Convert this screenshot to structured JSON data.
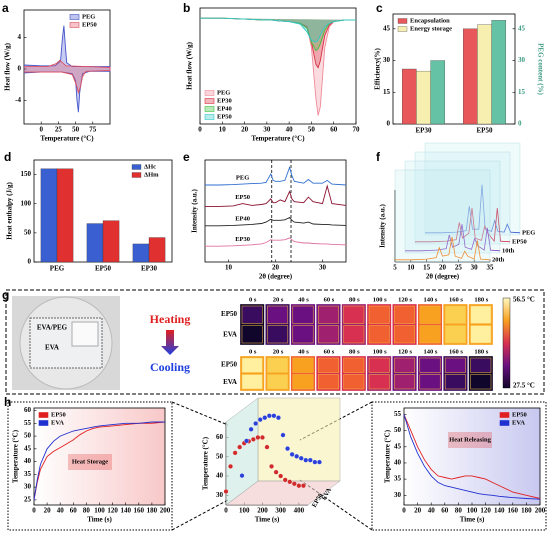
{
  "chart_data": [
    {
      "type": "line",
      "panel": "a",
      "fill": true,
      "legend": "upper right",
      "x_label": "Temperature (°C)",
      "y_label": "Heat flow (W/g)",
      "xlim": [
        -25,
        100
      ],
      "xticks": [
        0,
        25,
        50,
        75
      ],
      "ylim": [
        -7,
        7.5
      ],
      "yticks": [
        -4,
        0,
        4
      ],
      "series": [
        {
          "name": "PEG",
          "color": "#4455cc",
          "x": [
            -25,
            0,
            20,
            28,
            31,
            33,
            35,
            37,
            45,
            75,
            100,
            100,
            70,
            60,
            56,
            54,
            52,
            50,
            45,
            30,
            0,
            -25
          ],
          "values": [
            0.5,
            0.4,
            0.4,
            1,
            4,
            5.5,
            3,
            0.8,
            0.3,
            0.3,
            0.3,
            -0.3,
            -0.3,
            -0.6,
            -3,
            -5.5,
            -4,
            -1.5,
            -0.6,
            -0.4,
            -0.4,
            -0.5
          ]
        },
        {
          "name": "EP50",
          "color": "#e05060",
          "x": [
            -25,
            10,
            22,
            27,
            31,
            36,
            100,
            100,
            65,
            60,
            57,
            54,
            51,
            45,
            30,
            -25
          ],
          "values": [
            0.3,
            0.3,
            0.7,
            1.1,
            0.8,
            0.4,
            0.2,
            -0.2,
            -0.3,
            -1,
            -2.3,
            -3,
            -2,
            -0.7,
            -0.4,
            -0.4
          ]
        }
      ]
    },
    {
      "type": "line",
      "panel": "b",
      "fill": true,
      "legend": "lower left",
      "x_label": "Temperature (°C)",
      "y_label": "Heat flow (W/g)",
      "xlim": [
        0,
        70
      ],
      "xticks": [
        0,
        10,
        20,
        30,
        40,
        50,
        60,
        70
      ],
      "ylim": [
        -6,
        0.8
      ],
      "x": [
        0,
        10,
        20,
        28,
        30,
        32,
        35,
        40,
        45,
        48,
        50,
        52,
        53,
        54,
        56,
        58,
        60,
        65,
        70
      ],
      "series": [
        {
          "name": "PEG",
          "color": "#f08a98",
          "values": [
            0.2,
            0.2,
            0.15,
            0.1,
            0.1,
            0.1,
            0.05,
            0,
            -0.1,
            -0.3,
            -1.5,
            -4.5,
            -5.5,
            -5,
            -1.5,
            -0.3,
            0,
            0.1,
            0.1
          ]
        },
        {
          "name": "EP30",
          "color": "#d83040",
          "values": [
            0.2,
            0.2,
            0.15,
            0.1,
            0.1,
            0.1,
            0.05,
            0,
            -0.1,
            -0.3,
            -1.2,
            -2.5,
            -2.7,
            -2.3,
            -0.8,
            -0.2,
            0,
            0.1,
            0.1
          ]
        },
        {
          "name": "EP40",
          "color": "#3cc03c",
          "values": [
            0.2,
            0.2,
            0.15,
            0.1,
            0.1,
            0.1,
            0.05,
            0,
            -0.1,
            -0.4,
            -1.2,
            -1.7,
            -1.6,
            -1.3,
            -0.5,
            -0.1,
            0,
            0.1,
            0.1
          ]
        },
        {
          "name": "EP50",
          "color": "#30c8c8",
          "values": [
            0.2,
            0.2,
            0.15,
            0.1,
            0.1,
            0.1,
            0.05,
            0,
            -0.15,
            -0.6,
            -1.1,
            -1.2,
            -1.1,
            -0.8,
            -0.3,
            -0.1,
            0,
            0.1,
            0.1
          ]
        }
      ]
    },
    {
      "type": "bar",
      "panel": "c",
      "legend": "upper left",
      "y_label": "Efficiency(%)",
      "y2_label": "PEG content (%)",
      "categories": [
        "EP30",
        "EP50"
      ],
      "ylim": [
        0,
        52
      ],
      "yticks": [
        0,
        15,
        30,
        45
      ],
      "y2lim": [
        0,
        52
      ],
      "y2ticks": [
        0,
        15,
        30,
        45
      ],
      "series": [
        {
          "name": "Encapsulation",
          "color": "#e8585a",
          "values": [
            26,
            45
          ]
        },
        {
          "name": "Energy storage",
          "color": "#f7efb0",
          "values": [
            25,
            47
          ]
        },
        {
          "color": "#66c2a5",
          "axis": "y2",
          "values": [
            30,
            49
          ]
        }
      ]
    },
    {
      "type": "bar",
      "panel": "d",
      "legend": "upper right",
      "y_label": "Heat enthalpy (J/g)",
      "categories": [
        "PEG",
        "EP50",
        "EP30"
      ],
      "ylim": [
        0,
        175
      ],
      "yticks": [
        0,
        50,
        100,
        150
      ],
      "series": [
        {
          "name": "ΔHc",
          "color": "#3a5fd0",
          "values": [
            160,
            66,
            31
          ]
        },
        {
          "name": "ΔHm",
          "color": "#e03030",
          "values": [
            160,
            71,
            42
          ]
        }
      ]
    },
    {
      "type": "line",
      "panel": "e",
      "legend": "inline",
      "x_label": "2θ (degree)",
      "y_label": "Intensity (a.u.)",
      "xlim": [
        5,
        35
      ],
      "xticks": [
        10,
        20,
        30
      ],
      "ylim": [
        0,
        11
      ],
      "vlines": [
        19.2,
        23.3
      ],
      "x": [
        5,
        8,
        11,
        13,
        15,
        17,
        18,
        19,
        19.5,
        20,
        21,
        22,
        23,
        23.5,
        24,
        26,
        27,
        28,
        30,
        31,
        32,
        35
      ],
      "series": [
        {
          "name": "PEG",
          "color": "#2f6fd0",
          "values": [
            8.3,
            8.3,
            8.35,
            8.4,
            8.45,
            8.5,
            8.6,
            9.5,
            8.8,
            8.7,
            8.7,
            8.8,
            10.2,
            9.3,
            8.7,
            8.5,
            8.9,
            8.5,
            8.5,
            8.8,
            8.4,
            8.3
          ]
        },
        {
          "name": "EP50",
          "color": "#8a1030",
          "values": [
            6.0,
            6.0,
            6.05,
            6.3,
            6.1,
            6.2,
            6.3,
            6.8,
            6.4,
            6.4,
            6.7,
            6.5,
            7.6,
            6.8,
            6.5,
            6.4,
            7.0,
            6.5,
            6.3,
            8.2,
            6.3,
            6.1
          ]
        },
        {
          "name": "EP40",
          "color": "#222222",
          "values": [
            3.9,
            3.9,
            3.95,
            4.0,
            4.05,
            4.15,
            4.3,
            4.6,
            4.5,
            4.5,
            4.5,
            4.55,
            4.8,
            4.5,
            4.3,
            4.2,
            4.3,
            4.1,
            4.05,
            4.05,
            4.0,
            3.95
          ]
        },
        {
          "name": "EP30",
          "color": "#e070a0",
          "values": [
            1.7,
            1.7,
            1.75,
            1.8,
            1.85,
            1.95,
            2.1,
            2.4,
            2.35,
            2.35,
            2.35,
            2.4,
            2.6,
            2.4,
            2.2,
            2.05,
            2.05,
            2.0,
            1.95,
            1.95,
            1.9,
            1.85
          ]
        }
      ]
    },
    {
      "type": "waterfall",
      "panel": "f",
      "x_label": "2θ (degree)",
      "y_label": "Intensity (a.u.)",
      "xlim": [
        5,
        35
      ],
      "xticks": [
        5,
        10,
        15,
        20,
        25,
        30,
        35
      ],
      "ylim": [
        0,
        10
      ],
      "x": [
        5,
        10,
        15,
        18,
        19,
        20,
        22,
        23,
        24,
        26,
        27,
        28,
        30,
        31,
        32,
        35
      ],
      "series": [
        {
          "name": "PEG",
          "color": "#3050d0",
          "values": [
            0.3,
            0.3,
            0.4,
            0.6,
            4,
            0.8,
            0.8,
            7,
            0.8,
            0.5,
            2,
            0.5,
            0.4,
            1.5,
            0.4,
            0.3
          ]
        },
        {
          "name": "EP50",
          "color": "#d02040",
          "values": [
            0.3,
            0.3,
            0.4,
            0.6,
            3,
            0.8,
            1.5,
            5,
            0.8,
            0.5,
            2.5,
            1.5,
            0.4,
            5,
            0.4,
            0.3
          ]
        },
        {
          "name": "10th",
          "color": "#8040c0",
          "values": [
            0.3,
            0.3,
            0.4,
            0.6,
            2.5,
            0.8,
            1.2,
            4,
            0.8,
            0.5,
            2,
            1,
            0.4,
            3.5,
            0.4,
            0.3
          ]
        },
        {
          "name": "20th",
          "color": "#f09030",
          "values": [
            0.3,
            0.3,
            0.4,
            0.6,
            2,
            0.8,
            1,
            3.5,
            0.8,
            0.5,
            1.5,
            0.8,
            0.4,
            3,
            0.4,
            0.3
          ]
        }
      ]
    },
    {
      "type": "line",
      "panel": "h",
      "legend": "upper left",
      "annotation": "Heat Storage",
      "x_label": "Time (s)",
      "y_label": "Temperature (°C)",
      "xlim": [
        0,
        200
      ],
      "xticks": [
        0,
        20,
        40,
        60,
        80,
        100,
        120,
        140,
        160,
        180,
        200
      ],
      "ylim": [
        23,
        61
      ],
      "yticks": [
        25,
        30,
        35,
        40,
        45,
        50,
        55,
        60
      ],
      "x": [
        0,
        5,
        10,
        20,
        30,
        40,
        50,
        60,
        70,
        80,
        90,
        100,
        120,
        140,
        160,
        180,
        200
      ],
      "series": [
        {
          "name": "EP50",
          "color": "#e02020",
          "values": [
            25,
            32,
            37,
            42,
            44,
            45.5,
            47,
            48.5,
            50.5,
            52,
            53,
            53.5,
            54,
            54.5,
            55,
            55,
            55.5
          ]
        },
        {
          "name": "EVA",
          "color": "#2030d0",
          "values": [
            25,
            33,
            39,
            45,
            48,
            50,
            51,
            52,
            52.5,
            53,
            53.5,
            54,
            54.5,
            55,
            55,
            55.5,
            55.5
          ]
        }
      ]
    },
    {
      "type": "scatter3d",
      "x_label": "Time (s)",
      "y_label": "Temperature (°C)",
      "xlim": [
        0,
        450
      ],
      "xticks": [
        0,
        100,
        200,
        300,
        400
      ],
      "ylim": [
        25,
        68
      ],
      "yticks": [
        30,
        40,
        50,
        60
      ],
      "x": [
        0,
        25,
        50,
        75,
        100,
        125,
        150,
        175,
        200,
        225,
        250,
        275,
        300,
        325,
        350,
        375,
        400,
        425
      ],
      "series": [
        {
          "name": "EP50",
          "color": "#d02a2a",
          "values": [
            32,
            45,
            52,
            55,
            57,
            58,
            59,
            60,
            60,
            55,
            45,
            42,
            40,
            38,
            37,
            36,
            35,
            35
          ]
        },
        {
          "name": "EVA",
          "color": "#2a40d8",
          "values": [
            34,
            52,
            58,
            61,
            63,
            64,
            65,
            65,
            64,
            55,
            48,
            45,
            44,
            43,
            42,
            42,
            41,
            41
          ]
        }
      ]
    },
    {
      "type": "line",
      "legend": "upper right",
      "annotation": "Heat Releasing",
      "x_label": "Time (s)",
      "y_label": "Temperature (°C)",
      "xlim": [
        0,
        200
      ],
      "xticks": [
        0,
        20,
        40,
        60,
        80,
        100,
        120,
        140,
        160,
        180,
        200
      ],
      "ylim": [
        27,
        57
      ],
      "yticks": [
        30,
        35,
        40,
        45,
        50,
        55
      ],
      "x": [
        0,
        10,
        20,
        30,
        40,
        50,
        60,
        70,
        80,
        90,
        100,
        110,
        120,
        130,
        140,
        160,
        180,
        200
      ],
      "series": [
        {
          "name": "EP50",
          "color": "#e02020",
          "values": [
            55,
            50,
            45,
            41,
            38,
            36,
            35.5,
            35,
            35.5,
            36,
            36,
            35.5,
            35,
            34,
            33,
            31,
            30,
            29
          ]
        },
        {
          "name": "EVA",
          "color": "#2030d0",
          "values": [
            55,
            48,
            43,
            39,
            36,
            34,
            33,
            32.5,
            32,
            31.5,
            31,
            30.5,
            30.2,
            30,
            29.7,
            29.3,
            29,
            28.8
          ]
        }
      ]
    }
  ],
  "panel_g": {
    "panel": "g",
    "photo_labels": [
      "EVA/PEG",
      "EVA"
    ],
    "heating": "Heating",
    "cooling": "Cooling",
    "times": [
      "0 s",
      "20 s",
      "40 s",
      "60 s",
      "80 s",
      "100 s",
      "120 s",
      "140 s",
      "160 s",
      "180 s"
    ],
    "rows": [
      "EP50",
      "EVA"
    ],
    "colorbar": [
      "56.5 °C",
      "27.5 °C"
    ]
  }
}
